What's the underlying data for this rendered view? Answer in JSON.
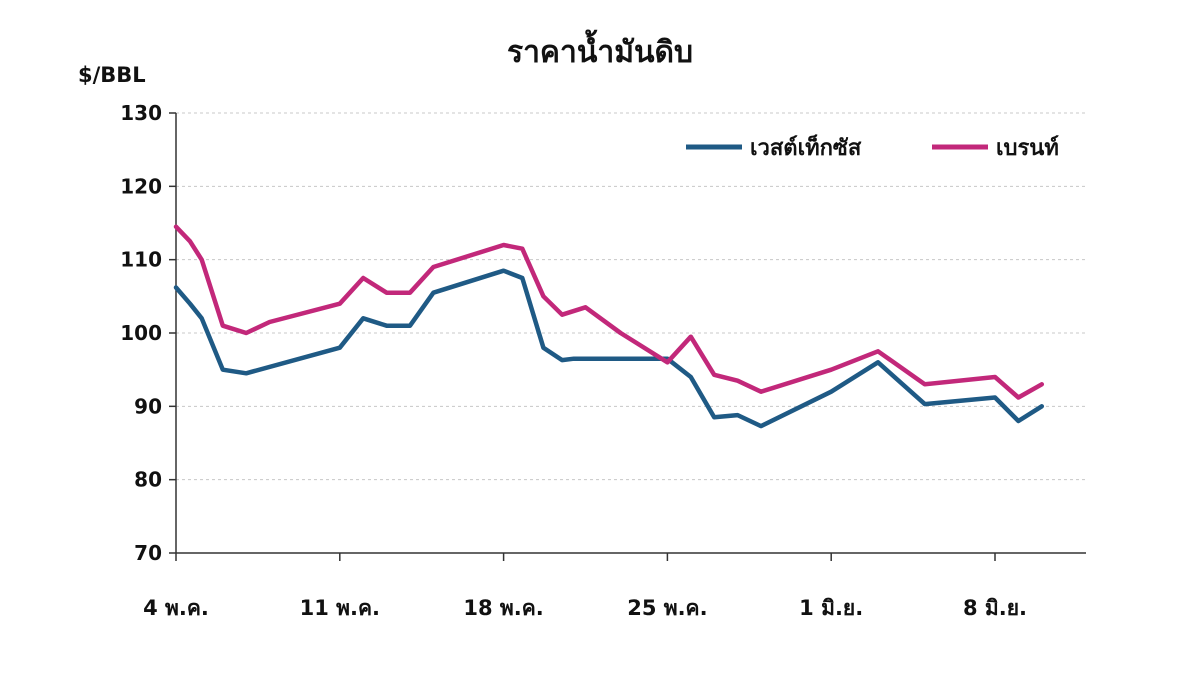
{
  "chart_data": {
    "type": "line",
    "title": "ราคาน้ำมันดิบ",
    "ylabel": "$/BBL",
    "xlabel": "",
    "ylim": [
      70,
      130
    ],
    "yticks": [
      70,
      80,
      90,
      100,
      110,
      120,
      130
    ],
    "grid": true,
    "legend_position": "top-right",
    "x_ticks": [
      {
        "x": 0,
        "label": "4 พ.ค."
      },
      {
        "x": 7,
        "label": "11 พ.ค."
      },
      {
        "x": 14,
        "label": "18 พ.ค."
      },
      {
        "x": 21,
        "label": "25 พ.ค."
      },
      {
        "x": 28,
        "label": "1 มิ.ย."
      },
      {
        "x": 35,
        "label": "8 มิ.ย."
      }
    ],
    "series": [
      {
        "name": "เวสต์เท็กซัส",
        "color": "#1f5a85",
        "points": [
          [
            0,
            106.2
          ],
          [
            0.6,
            104
          ],
          [
            1.1,
            102
          ],
          [
            2,
            95
          ],
          [
            3,
            94.5
          ],
          [
            7,
            98
          ],
          [
            8,
            102
          ],
          [
            9,
            101
          ],
          [
            10,
            101
          ],
          [
            11,
            105.5
          ],
          [
            14,
            108.5
          ],
          [
            14.8,
            107.5
          ],
          [
            15.7,
            98
          ],
          [
            16.5,
            96.3
          ],
          [
            17,
            96.5
          ],
          [
            21,
            96.5
          ],
          [
            22,
            94
          ],
          [
            23,
            88.5
          ],
          [
            24,
            88.8
          ],
          [
            25,
            87.3
          ],
          [
            28,
            92
          ],
          [
            30,
            96
          ],
          [
            32,
            90.3
          ],
          [
            35,
            91.2
          ],
          [
            36,
            88
          ],
          [
            37,
            90
          ]
        ]
      },
      {
        "name": "เบรนท์",
        "color": "#c2287a",
        "points": [
          [
            0,
            114.5
          ],
          [
            0.6,
            112.5
          ],
          [
            1.1,
            110
          ],
          [
            2,
            101
          ],
          [
            3,
            100
          ],
          [
            4,
            101.5
          ],
          [
            7,
            104
          ],
          [
            8,
            107.5
          ],
          [
            9,
            105.5
          ],
          [
            10,
            105.5
          ],
          [
            11,
            109
          ],
          [
            14,
            112
          ],
          [
            14.8,
            111.5
          ],
          [
            15.7,
            105
          ],
          [
            16.5,
            102.5
          ],
          [
            17.5,
            103.5
          ],
          [
            19,
            100
          ],
          [
            21,
            96
          ],
          [
            22,
            99.5
          ],
          [
            23,
            94.3
          ],
          [
            24,
            93.5
          ],
          [
            25,
            92
          ],
          [
            28,
            95
          ],
          [
            30,
            97.5
          ],
          [
            32,
            93
          ],
          [
            35,
            94
          ],
          [
            36,
            91.2
          ],
          [
            37,
            93
          ]
        ]
      }
    ]
  }
}
